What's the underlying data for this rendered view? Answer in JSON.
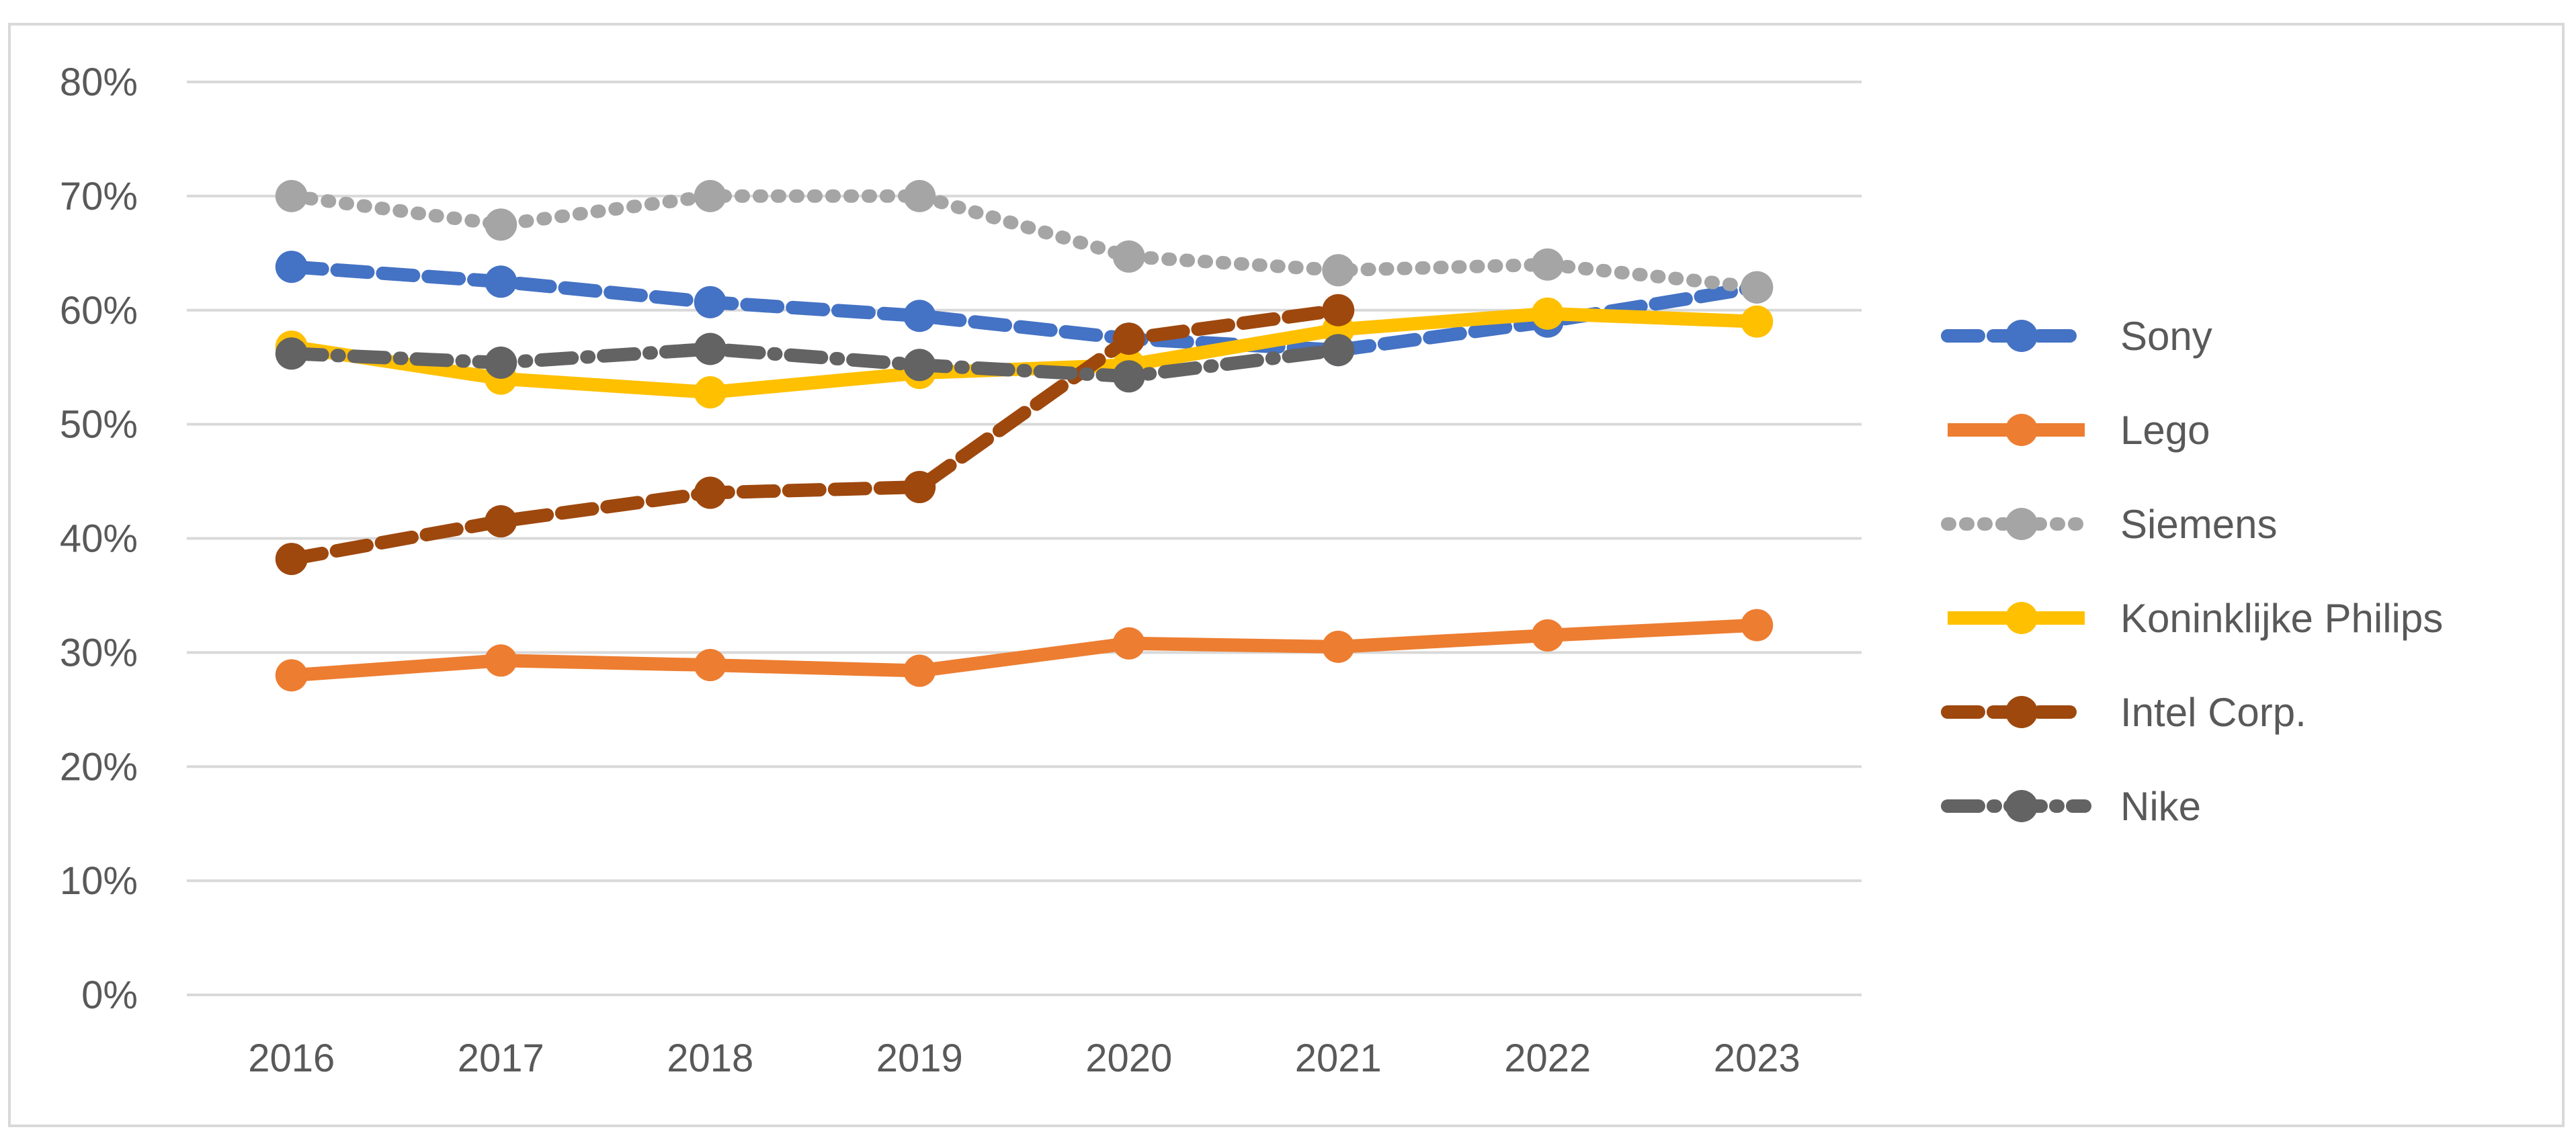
{
  "chart_data": {
    "type": "line",
    "title": "",
    "xlabel": "",
    "ylabel": "",
    "categories": [
      "2016",
      "2017",
      "2018",
      "2019",
      "2020",
      "2021",
      "2022",
      "2023"
    ],
    "ylim": [
      0,
      80
    ],
    "y_ticks": [
      0,
      10,
      20,
      30,
      40,
      50,
      60,
      70,
      80
    ],
    "y_tick_labels": [
      "0%",
      "10%",
      "20%",
      "30%",
      "40%",
      "50%",
      "60%",
      "70%",
      "80%"
    ],
    "grid": true,
    "legend_position": "right",
    "series": [
      {
        "name": "Sony",
        "color": "#4472C4",
        "dash": "dash",
        "values": [
          63.8,
          62.5,
          60.7,
          59.5,
          57.5,
          56.5,
          59.0,
          62.0
        ]
      },
      {
        "name": "Lego",
        "color": "#ED7D31",
        "dash": "solid",
        "values": [
          28.0,
          29.3,
          28.9,
          28.4,
          30.8,
          30.5,
          31.5,
          32.4
        ]
      },
      {
        "name": "Siemens",
        "color": "#A5A5A5",
        "dash": "dot",
        "values": [
          70.0,
          67.5,
          70.0,
          70.0,
          64.7,
          63.5,
          64.0,
          62.0
        ]
      },
      {
        "name": "Koninklijke Philips",
        "color": "#FFC000",
        "dash": "solid",
        "values": [
          56.8,
          54.0,
          52.8,
          54.5,
          55.2,
          58.3,
          59.7,
          59.0
        ]
      },
      {
        "name": "Intel Corp.",
        "color": "#9E480E",
        "dash": "dash",
        "values": [
          38.2,
          41.5,
          44.0,
          44.5,
          57.5,
          60.0,
          null,
          null
        ]
      },
      {
        "name": "Nike",
        "color": "#636363",
        "dash": "dashdot",
        "values": [
          56.2,
          55.4,
          56.6,
          55.2,
          54.2,
          56.5,
          null,
          null
        ]
      }
    ]
  }
}
